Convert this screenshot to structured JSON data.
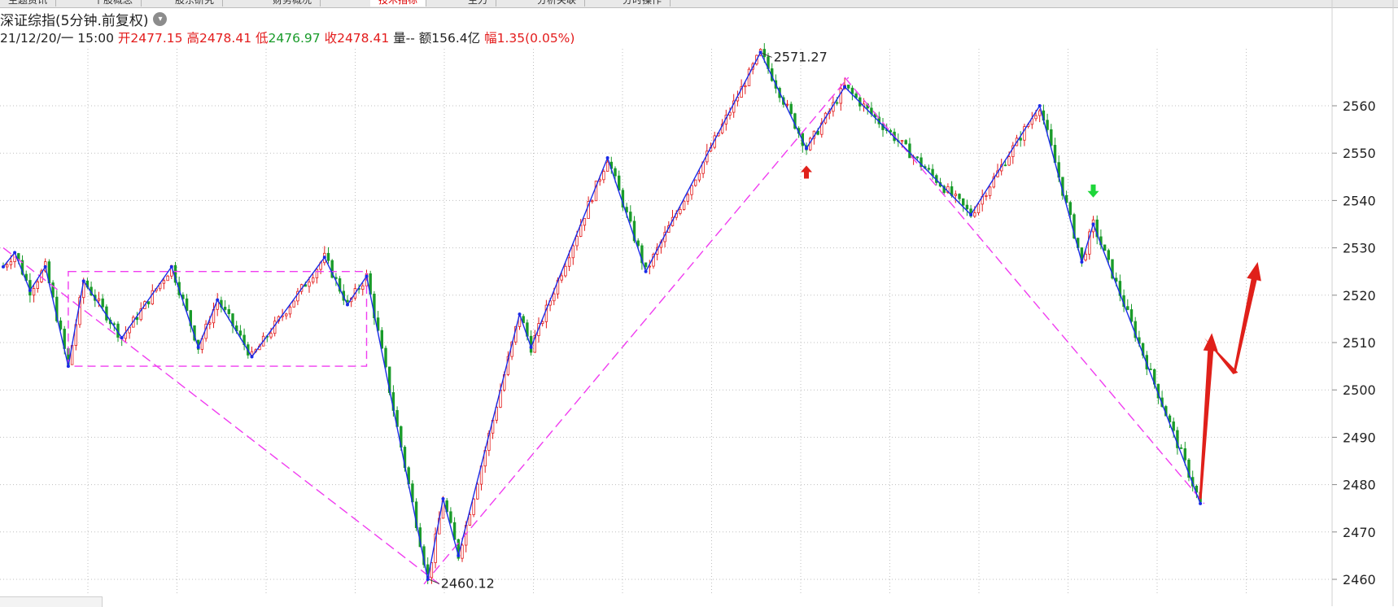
{
  "tabs": [
    {
      "label": "主题资讯"
    },
    {
      "label": "个股概念"
    },
    {
      "label": "股东研究"
    },
    {
      "label": "财务概况"
    },
    {
      "label": "技术指标",
      "active": true
    },
    {
      "label": "主力"
    },
    {
      "label": "分析关联"
    },
    {
      "label": "分时操作"
    }
  ],
  "header": {
    "title": "深证综指(5分钟.前复权)",
    "datetime": "21/12/20/一 15:00",
    "open_label": "开",
    "open": "2477.15",
    "high_label": "高",
    "high": "2478.41",
    "low_label": "低",
    "low": "2476.97",
    "close_label": "收",
    "close": "2478.41",
    "volume_label": "量",
    "volume": "--",
    "amount_label": "额",
    "amount": "156.4亿",
    "change_label": "幅",
    "change": "1.35(0.05%)"
  },
  "colors": {
    "up": "#e31b1b",
    "down": "#199b2a",
    "zigzag": "#1a2be8",
    "trend": "#f03cf0",
    "grid": "#bfbfbf",
    "arrow_up": "#e0201a",
    "arrow_down": "#1ed63a"
  },
  "chart_data": {
    "type": "line",
    "series_type": "candlestick-close-with-zigzag",
    "ylim": [
      2457,
      2578
    ],
    "yticks": [
      2460,
      2470,
      2480,
      2490,
      2500,
      2510,
      2520,
      2530,
      2540,
      2550,
      2560
    ],
    "ytick_labels": [
      "2460",
      "2470",
      "2480",
      "2490",
      "2500",
      "2510",
      "2520",
      "2530",
      "2540",
      "2550",
      "2560"
    ],
    "bar_count": 330,
    "grid": true,
    "annotations": [
      {
        "label": "2571.27",
        "bar": 198,
        "value": 2571.27
      },
      {
        "label": "2460.12",
        "bar": 111,
        "value": 2460.12
      }
    ],
    "zigzag": [
      {
        "bar": 0,
        "value": 2526
      },
      {
        "bar": 3,
        "value": 2529
      },
      {
        "bar": 7,
        "value": 2521
      },
      {
        "bar": 11,
        "value": 2526
      },
      {
        "bar": 17,
        "value": 2505
      },
      {
        "bar": 21,
        "value": 2523
      },
      {
        "bar": 31,
        "value": 2511
      },
      {
        "bar": 44,
        "value": 2526
      },
      {
        "bar": 51,
        "value": 2509
      },
      {
        "bar": 56,
        "value": 2519
      },
      {
        "bar": 65,
        "value": 2507
      },
      {
        "bar": 84,
        "value": 2528
      },
      {
        "bar": 90,
        "value": 2518
      },
      {
        "bar": 95,
        "value": 2524
      },
      {
        "bar": 111,
        "value": 2460
      },
      {
        "bar": 115,
        "value": 2477
      },
      {
        "bar": 119,
        "value": 2465
      },
      {
        "bar": 135,
        "value": 2516
      },
      {
        "bar": 138,
        "value": 2509
      },
      {
        "bar": 158,
        "value": 2549
      },
      {
        "bar": 168,
        "value": 2525
      },
      {
        "bar": 198,
        "value": 2571.27
      },
      {
        "bar": 210,
        "value": 2551
      },
      {
        "bar": 220,
        "value": 2564
      },
      {
        "bar": 253,
        "value": 2537
      },
      {
        "bar": 271,
        "value": 2560
      },
      {
        "bar": 282,
        "value": 2527
      },
      {
        "bar": 285,
        "value": 2535
      },
      {
        "bar": 313,
        "value": 2476
      }
    ],
    "trendlines": [
      {
        "from": {
          "bar": 0,
          "value": 2530
        },
        "to": {
          "bar": 114,
          "value": 2459
        }
      },
      {
        "from": {
          "bar": 110,
          "value": 2459
        },
        "to": {
          "bar": 221,
          "value": 2566
        }
      },
      {
        "from": {
          "bar": 220,
          "value": 2566
        },
        "to": {
          "bar": 314,
          "value": 2476
        }
      }
    ],
    "box": {
      "bar_from": 17,
      "bar_to": 95,
      "value_low": 2505,
      "value_high": 2525
    },
    "markers": [
      {
        "type": "up-arrow",
        "bar": 210,
        "value": 2546
      },
      {
        "type": "down-arrow",
        "bar": 285,
        "value": 2542
      }
    ],
    "projection": [
      {
        "bar": 313,
        "value": 2477
      },
      {
        "bar": 316,
        "value": 2512
      },
      {
        "bar": 314,
        "value": 2511
      },
      {
        "bar": 322,
        "value": 2504
      },
      {
        "bar": 328,
        "value": 2527
      }
    ]
  }
}
